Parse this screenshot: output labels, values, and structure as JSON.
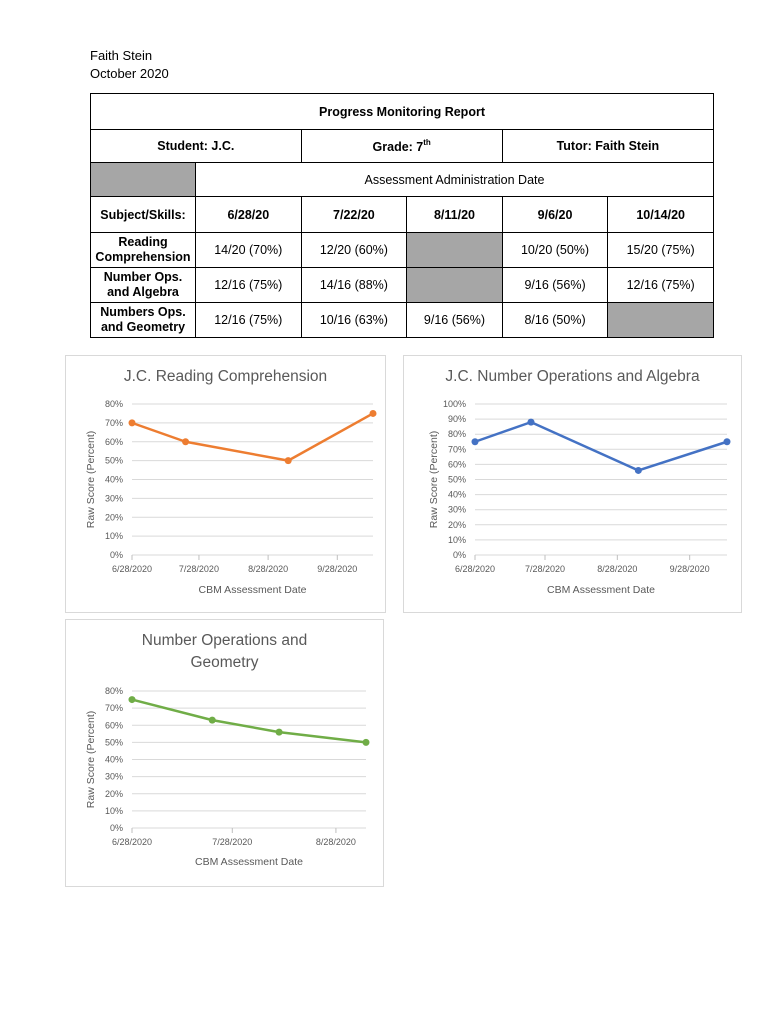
{
  "header": {
    "author": "Faith Stein",
    "date": "October 2020"
  },
  "table": {
    "title": "Progress Monitoring Report",
    "student": "Student: J.C.",
    "grade": "Grade: 7",
    "grade_sup": "th",
    "tutor": "Tutor: Faith Stein",
    "group_header": "Assessment Administration Date",
    "columns": [
      "Subject/Skills:",
      "6/28/20",
      "7/22/20",
      "8/11/20",
      "9/6/20",
      "10/14/20"
    ],
    "rows": [
      {
        "subject": "Reading Comprehension",
        "cells": [
          "14/20 (70%)",
          "12/20 (60%)",
          "",
          "10/20 (50%)",
          "15/20 (75%)"
        ]
      },
      {
        "subject": "Number Ops. and Algebra",
        "cells": [
          "12/16 (75%)",
          "14/16 (88%)",
          "",
          "9/16 (56%)",
          "12/16 (75%)"
        ]
      },
      {
        "subject": "Numbers Ops. and Geometry",
        "cells": [
          "12/16 (75%)",
          "10/16 (63%)",
          "9/16 (56%)",
          "8/16 (50%)",
          ""
        ]
      }
    ]
  },
  "chart_data": [
    {
      "type": "line",
      "title": "J.C. Reading Comprehension",
      "xlabel": "CBM Assessment Date",
      "ylabel": "Raw Score (Percent)",
      "x": [
        "6/28/2020",
        "7/22/2020",
        "9/6/2020",
        "10/14/2020"
      ],
      "y": [
        70,
        60,
        50,
        75
      ],
      "xticks": [
        "6/28/2020",
        "7/28/2020",
        "8/28/2020",
        "9/28/2020"
      ],
      "xlim": [
        "6/28/2020",
        "10/14/2020"
      ],
      "ylim": [
        0,
        80
      ],
      "ystep": 10,
      "grid": true,
      "color": "#ed7d31"
    },
    {
      "type": "line",
      "title": "J.C. Number Operations and Algebra",
      "xlabel": "CBM Assessment Date",
      "ylabel": "Raw Score (Percent)",
      "x": [
        "6/28/2020",
        "7/22/2020",
        "9/6/2020",
        "10/14/2020"
      ],
      "y": [
        75,
        88,
        56,
        75
      ],
      "xticks": [
        "6/28/2020",
        "7/28/2020",
        "8/28/2020",
        "9/28/2020"
      ],
      "xlim": [
        "6/28/2020",
        "10/14/2020"
      ],
      "ylim": [
        0,
        100
      ],
      "ystep": 10,
      "grid": true,
      "color": "#4472c4"
    },
    {
      "type": "line",
      "title": "Number Operations and Geometry",
      "xlabel": "CBM Assessment Date",
      "ylabel": "Raw Score (Percent)",
      "x": [
        "6/28/2020",
        "7/22/2020",
        "8/11/2020",
        "9/6/2020"
      ],
      "y": [
        75,
        63,
        56,
        50
      ],
      "xticks": [
        "6/28/2020",
        "7/28/2020",
        "8/28/2020"
      ],
      "xlim": [
        "6/28/2020",
        "9/6/2020"
      ],
      "ylim": [
        0,
        80
      ],
      "ystep": 10,
      "grid": true,
      "color": "#70ad47"
    }
  ]
}
